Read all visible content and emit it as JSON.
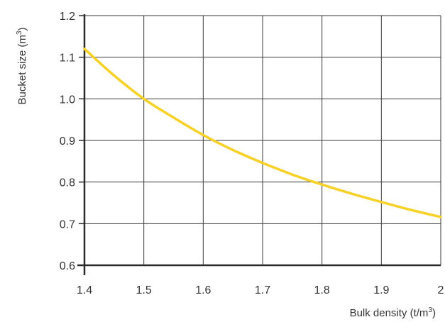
{
  "chart_data": {
    "type": "line",
    "title": "",
    "xlabel": "Bulk density (t/m3)",
    "ylabel": "Bucket size (m3)",
    "xlabel_parts": {
      "main": "Bulk density (t/m",
      "sup": "3",
      "end": ")"
    },
    "ylabel_parts": {
      "main": "Bucket size (m",
      "sup": "3",
      "end": ")"
    },
    "xlim": [
      1.4,
      2.0
    ],
    "ylim": [
      0.6,
      1.2
    ],
    "x_ticks": [
      1.4,
      1.5,
      1.6,
      1.7,
      1.8,
      1.9,
      2.0
    ],
    "x_tick_labels": [
      "1.4",
      "1.5",
      "1.6",
      "1.7",
      "1.8",
      "1.9",
      "2"
    ],
    "y_ticks": [
      0.6,
      0.7,
      0.8,
      0.9,
      1.0,
      1.1,
      1.2
    ],
    "y_tick_labels": [
      "0.6",
      "0.7",
      "0.8",
      "0.9",
      "1.0",
      "1.1",
      "1.2"
    ],
    "grid": true,
    "series": [
      {
        "color": "#F6D127",
        "x": [
          1.4,
          1.45,
          1.5,
          1.55,
          1.6,
          1.65,
          1.7,
          1.75,
          1.8,
          1.85,
          1.9,
          1.95,
          2.0
        ],
        "y": [
          1.12,
          1.056,
          1.0,
          0.955,
          0.913,
          0.877,
          0.846,
          0.818,
          0.794,
          0.772,
          0.752,
          0.733,
          0.716
        ]
      }
    ]
  }
}
